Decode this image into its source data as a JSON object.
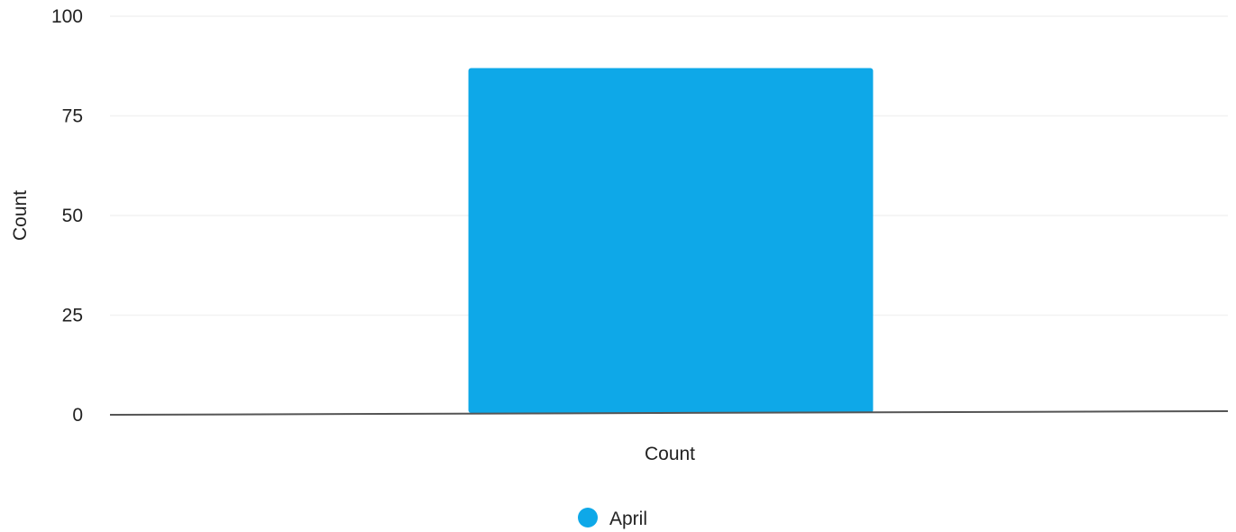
{
  "chart_data": {
    "type": "bar",
    "categories": [
      "Count"
    ],
    "series": [
      {
        "name": "April",
        "values": [
          87
        ],
        "color": "#0EA8E8"
      }
    ],
    "ylabel": "Count",
    "ylim": [
      0,
      100
    ],
    "yticks": [
      0,
      25,
      50,
      75,
      100
    ],
    "grid": true,
    "legend_position": "bottom-center"
  }
}
